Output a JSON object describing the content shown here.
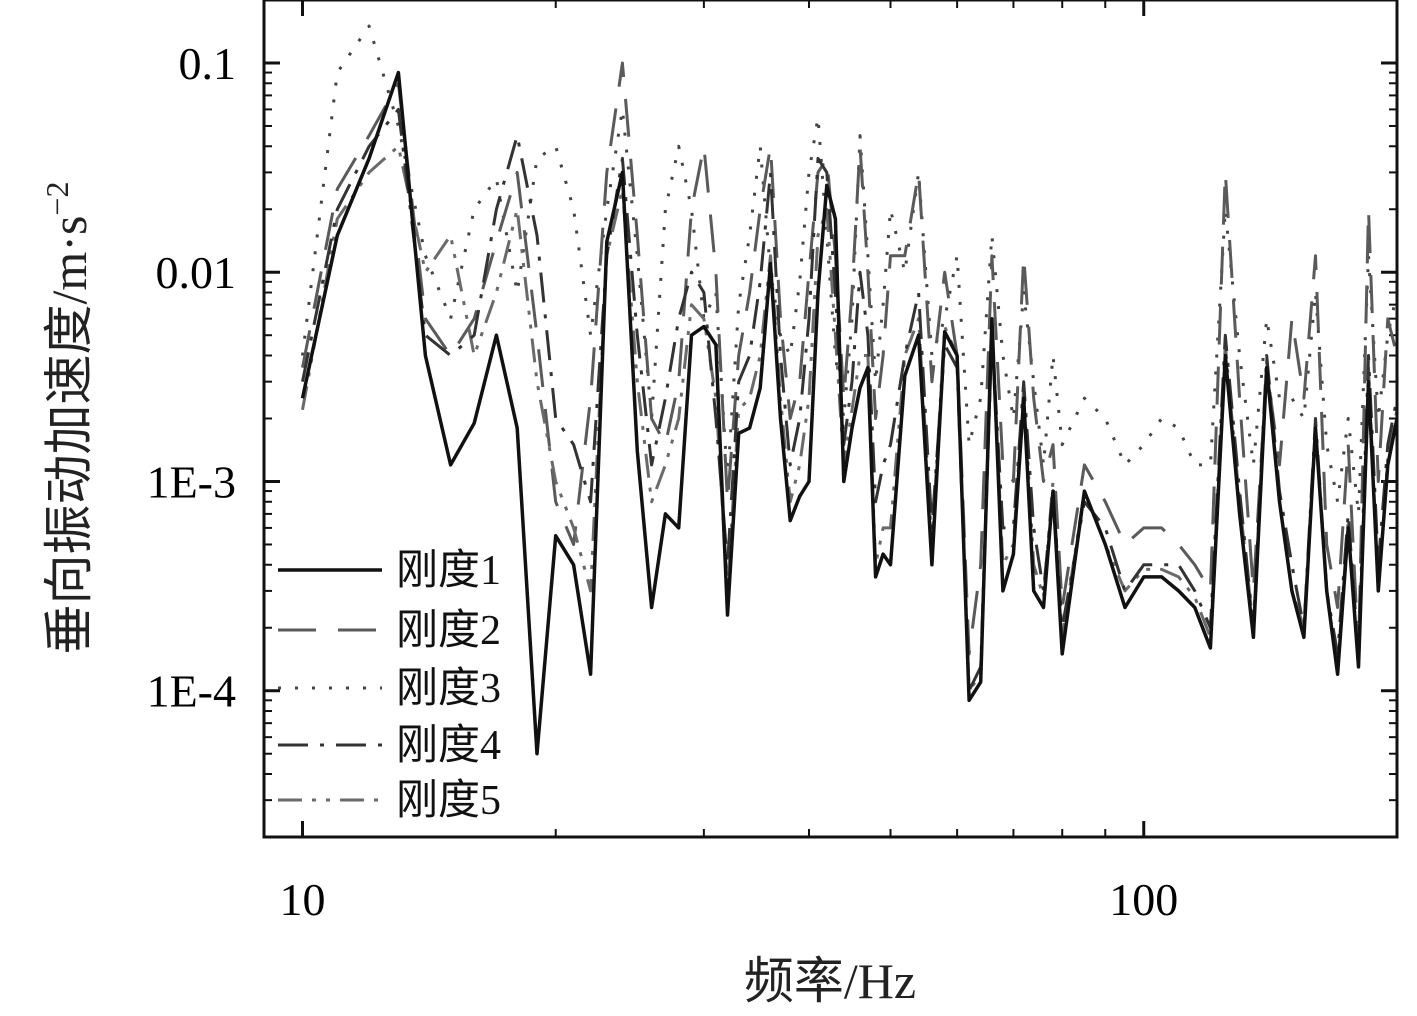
{
  "chart_data": {
    "type": "line",
    "xlabel": "频率/Hz",
    "ylabel": "垂向振动加速度/m·s",
    "ylabel_exponent": "−2",
    "xscale": "log",
    "yscale": "log",
    "xlim": [
      9,
      200
    ],
    "ylim": [
      2e-05,
      0.2
    ],
    "x_ticks": [
      {
        "value": 10,
        "label": "10"
      },
      {
        "value": 100,
        "label": "100"
      }
    ],
    "y_ticks": [
      {
        "value": 0.1,
        "label": "0.1"
      },
      {
        "value": 0.01,
        "label": "0.01"
      },
      {
        "value": 0.001,
        "label": "1E-3"
      },
      {
        "value": 0.0001,
        "label": "1E-4"
      }
    ],
    "grid": false,
    "legend_position": "bottom-left",
    "series": [
      {
        "name": "刚度1",
        "color": "#111111",
        "dash": "",
        "x": [
          10,
          11,
          12,
          13,
          14,
          15,
          16,
          17,
          18,
          19,
          20,
          21,
          22,
          23,
          24,
          25,
          26,
          27,
          28,
          29,
          30,
          31,
          32,
          33,
          34,
          35,
          36,
          37,
          38,
          39,
          40,
          41,
          42,
          43,
          44,
          45,
          46,
          47,
          48,
          49,
          50,
          52,
          54,
          56,
          58,
          60,
          62,
          64,
          66,
          68,
          70,
          72,
          74,
          76,
          78,
          80,
          85,
          90,
          95,
          100,
          105,
          110,
          115,
          120,
          125,
          130,
          135,
          140,
          145,
          150,
          155,
          160,
          165,
          170,
          175,
          180,
          185,
          190,
          195,
          200
        ],
        "values": [
          0.0025,
          0.015,
          0.035,
          0.09,
          0.004,
          0.0012,
          0.0019,
          0.005,
          0.0018,
          5e-05,
          0.00055,
          0.0004,
          0.00012,
          0.014,
          0.03,
          0.0014,
          0.00025,
          0.0007,
          0.0006,
          0.005,
          0.0055,
          0.0045,
          0.00023,
          0.0017,
          0.0018,
          0.0028,
          0.011,
          0.002,
          0.00065,
          0.00085,
          0.001,
          0.008,
          0.026,
          0.018,
          0.001,
          0.0018,
          0.0028,
          0.0035,
          0.00035,
          0.00045,
          0.0004,
          0.0032,
          0.005,
          0.0004,
          0.0052,
          0.004,
          9e-05,
          0.00011,
          0.006,
          0.0003,
          0.00045,
          0.0025,
          0.0003,
          0.00025,
          0.0009,
          0.00015,
          0.0009,
          0.0005,
          0.00025,
          0.00035,
          0.00035,
          0.0003,
          0.00025,
          0.00016,
          0.004,
          0.0007,
          0.00018,
          0.0035,
          0.0008,
          0.0003,
          0.00018,
          0.0018,
          0.0003,
          0.00012,
          0.0006,
          0.00013,
          0.003,
          0.0003,
          0.0012,
          0.002
        ]
      },
      {
        "name": "刚度2",
        "color": "#5a5a5a",
        "dash": "38 22",
        "x": [
          10,
          11,
          12,
          13,
          14,
          15,
          16,
          17,
          18,
          19,
          20,
          21,
          22,
          23,
          24,
          25,
          26,
          27,
          28,
          29,
          30,
          31,
          32,
          33,
          34,
          35,
          36,
          37,
          38,
          39,
          40,
          41,
          42,
          43,
          44,
          45,
          46,
          47,
          48,
          49,
          50,
          52,
          54,
          56,
          58,
          60,
          62,
          64,
          66,
          68,
          70,
          72,
          74,
          76,
          78,
          80,
          85,
          90,
          95,
          100,
          105,
          110,
          115,
          120,
          125,
          130,
          135,
          140,
          145,
          150,
          155,
          160,
          165,
          170,
          175,
          180,
          185,
          190,
          195,
          200
        ],
        "values": [
          0.0035,
          0.025,
          0.045,
          0.08,
          0.006,
          0.004,
          0.006,
          0.014,
          0.03,
          0.005,
          0.0008,
          0.0005,
          0.0025,
          0.03,
          0.1,
          0.015,
          0.002,
          0.0015,
          0.003,
          0.02,
          0.04,
          0.01,
          0.0008,
          0.004,
          0.008,
          0.02,
          0.04,
          0.006,
          0.002,
          0.003,
          0.01,
          0.03,
          0.035,
          0.012,
          0.0025,
          0.008,
          0.04,
          0.01,
          0.002,
          0.004,
          0.012,
          0.012,
          0.03,
          0.003,
          0.01,
          0.004,
          0.00015,
          0.0004,
          0.012,
          0.0012,
          0.001,
          0.012,
          0.0025,
          0.001,
          0.0015,
          0.00025,
          0.0012,
          0.0008,
          0.0005,
          0.0006,
          0.0006,
          0.0005,
          0.0004,
          0.0003,
          0.03,
          0.0025,
          0.0003,
          0.0035,
          0.0012,
          0.006,
          0.0025,
          0.012,
          0.0005,
          0.00025,
          0.0015,
          0.00015,
          0.02,
          0.001,
          0.006,
          0.004
        ]
      },
      {
        "name": "刚度3",
        "color": "#444444",
        "dash": "3 14",
        "x": [
          10,
          11,
          12,
          13,
          14,
          15,
          16,
          17,
          18,
          19,
          20,
          21,
          22,
          23,
          24,
          25,
          26,
          27,
          28,
          29,
          30,
          31,
          32,
          33,
          34,
          35,
          36,
          37,
          38,
          39,
          40,
          41,
          42,
          43,
          44,
          45,
          46,
          47,
          48,
          49,
          50,
          52,
          54,
          56,
          58,
          60,
          62,
          64,
          66,
          68,
          70,
          72,
          74,
          76,
          78,
          80,
          85,
          90,
          95,
          100,
          105,
          110,
          115,
          120,
          125,
          130,
          135,
          140,
          145,
          150,
          155,
          160,
          165,
          170,
          175,
          180,
          185,
          190,
          195,
          200
        ],
        "values": [
          0.004,
          0.09,
          0.15,
          0.05,
          0.012,
          0.006,
          0.02,
          0.028,
          0.008,
          0.035,
          0.04,
          0.02,
          0.005,
          0.02,
          0.06,
          0.012,
          0.002,
          0.02,
          0.04,
          0.02,
          0.006,
          0.008,
          0.001,
          0.007,
          0.015,
          0.04,
          0.01,
          0.005,
          0.004,
          0.009,
          0.03,
          0.055,
          0.015,
          0.004,
          0.002,
          0.006,
          0.045,
          0.012,
          0.003,
          0.007,
          0.02,
          0.01,
          0.03,
          0.004,
          0.006,
          0.012,
          0.0015,
          0.0025,
          0.015,
          0.004,
          0.002,
          0.008,
          0.003,
          0.0012,
          0.004,
          0.0015,
          0.0025,
          0.002,
          0.0012,
          0.0015,
          0.002,
          0.0018,
          0.0012,
          0.0012,
          0.02,
          0.004,
          0.0012,
          0.006,
          0.0025,
          0.0025,
          0.002,
          0.008,
          0.0015,
          0.0008,
          0.002,
          0.0007,
          0.012,
          0.002,
          0.005,
          0.008
        ]
      },
      {
        "name": "刚度4",
        "color": "#333333",
        "dash": "30 12 4 12",
        "x": [
          10,
          11,
          12,
          13,
          14,
          15,
          16,
          17,
          18,
          19,
          20,
          21,
          22,
          23,
          24,
          25,
          26,
          27,
          28,
          29,
          30,
          31,
          32,
          33,
          34,
          35,
          36,
          37,
          38,
          39,
          40,
          41,
          42,
          43,
          44,
          45,
          46,
          47,
          48,
          49,
          50,
          52,
          54,
          56,
          58,
          60,
          62,
          64,
          66,
          68,
          70,
          72,
          74,
          76,
          78,
          80,
          85,
          90,
          95,
          100,
          105,
          110,
          115,
          120,
          125,
          130,
          135,
          140,
          145,
          150,
          155,
          160,
          165,
          170,
          175,
          180,
          185,
          190,
          195,
          200
        ],
        "values": [
          0.003,
          0.02,
          0.04,
          0.06,
          0.005,
          0.004,
          0.005,
          0.02,
          0.045,
          0.015,
          0.002,
          0.0015,
          0.0008,
          0.012,
          0.035,
          0.005,
          0.0012,
          0.0025,
          0.006,
          0.01,
          0.008,
          0.002,
          0.0004,
          0.003,
          0.004,
          0.009,
          0.03,
          0.004,
          0.0012,
          0.002,
          0.006,
          0.035,
          0.03,
          0.008,
          0.0015,
          0.003,
          0.01,
          0.005,
          0.0008,
          0.0012,
          0.0015,
          0.004,
          0.008,
          0.0006,
          0.0045,
          0.0035,
          0.0001,
          0.00013,
          0.005,
          0.0006,
          0.0006,
          0.003,
          0.0006,
          0.0003,
          0.0009,
          0.0002,
          0.0008,
          0.0006,
          0.0003,
          0.0004,
          0.0004,
          0.0004,
          0.0003,
          0.0002,
          0.005,
          0.0009,
          0.0002,
          0.004,
          0.0009,
          0.0004,
          0.0002,
          0.002,
          0.0003,
          0.00015,
          0.0007,
          0.00015,
          0.004,
          0.0004,
          0.0015,
          0.0025
        ]
      },
      {
        "name": "刚度5",
        "color": "#6a6a6a",
        "dash": "24 10 4 10 4 10",
        "x": [
          10,
          11,
          12,
          13,
          14,
          15,
          16,
          17,
          18,
          19,
          20,
          21,
          22,
          23,
          24,
          25,
          26,
          27,
          28,
          29,
          30,
          31,
          32,
          33,
          34,
          35,
          36,
          37,
          38,
          39,
          40,
          41,
          42,
          43,
          44,
          45,
          46,
          47,
          48,
          49,
          50,
          52,
          54,
          56,
          58,
          60,
          62,
          64,
          66,
          68,
          70,
          72,
          74,
          76,
          78,
          80,
          85,
          90,
          95,
          100,
          105,
          110,
          115,
          120,
          125,
          130,
          135,
          140,
          145,
          150,
          155,
          160,
          165,
          170,
          175,
          180,
          185,
          190,
          195,
          200
        ],
        "values": [
          0.0022,
          0.018,
          0.03,
          0.04,
          0.01,
          0.015,
          0.004,
          0.008,
          0.02,
          0.003,
          0.001,
          0.0006,
          0.0003,
          0.012,
          0.025,
          0.003,
          0.0008,
          0.0012,
          0.002,
          0.007,
          0.006,
          0.0025,
          0.0003,
          0.0022,
          0.0025,
          0.004,
          0.012,
          0.0025,
          0.0008,
          0.0012,
          0.0025,
          0.015,
          0.02,
          0.005,
          0.0012,
          0.0022,
          0.004,
          0.004,
          0.0004,
          0.0006,
          0.0006,
          0.004,
          0.006,
          0.0005,
          0.0055,
          0.004,
          0.0001,
          0.00012,
          0.0055,
          0.0004,
          0.0005,
          0.0028,
          0.0004,
          0.00028,
          0.001,
          0.00018,
          0.0009,
          0.0005,
          0.0003,
          0.00038,
          0.00038,
          0.00035,
          0.00028,
          0.00018,
          0.0045,
          0.0008,
          0.0002,
          0.0038,
          0.0008,
          0.0003,
          0.0002,
          0.0018,
          0.0003,
          0.00013,
          0.00065,
          0.00013,
          0.0035,
          0.0003,
          0.0013,
          0.0022
        ]
      }
    ]
  }
}
